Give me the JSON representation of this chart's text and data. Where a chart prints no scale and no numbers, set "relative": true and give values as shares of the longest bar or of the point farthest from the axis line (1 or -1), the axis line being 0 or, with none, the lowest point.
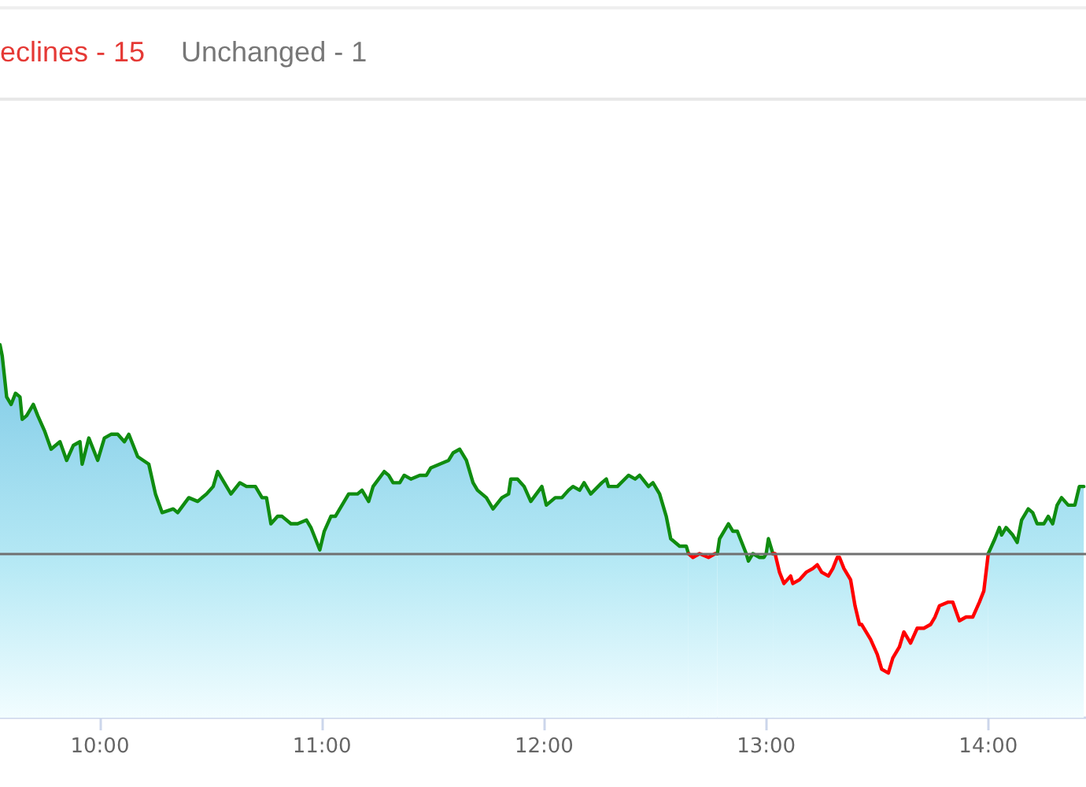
{
  "chart_data": {
    "type": "area",
    "relative": true,
    "annotations": [
      "eclines - 15",
      "Unchanged - 1"
    ],
    "xlim": [
      9.55,
      14.44
    ],
    "xticks": [
      {
        "value": 10,
        "label": "10:00"
      },
      {
        "value": 11,
        "label": "11:00"
      },
      {
        "value": 12,
        "label": "12:00"
      },
      {
        "value": 13,
        "label": "13:00"
      },
      {
        "value": 14,
        "label": "14:00"
      }
    ],
    "ref_lines": [
      {
        "axis": "y",
        "value": 0.44,
        "color": "#707070"
      }
    ],
    "marker": "none",
    "line_style": "solid",
    "series": [
      {
        "color": "#108c10",
        "x": [
          9.55,
          9.56,
          9.58,
          9.6,
          9.62,
          9.64,
          9.65,
          9.67,
          9.7,
          9.72,
          9.75,
          9.78,
          9.82,
          9.85,
          9.88,
          9.91,
          9.92,
          9.95,
          9.99,
          10.02,
          10.05,
          10.08,
          10.11,
          10.13,
          10.17,
          10.22,
          10.25,
          10.28,
          10.33,
          10.35,
          10.4,
          10.44,
          10.48,
          10.51,
          10.53,
          10.56,
          10.59,
          10.63,
          10.66,
          10.7,
          10.73,
          10.75,
          10.77,
          10.8,
          10.82,
          10.86,
          10.89,
          10.93,
          10.95,
          10.99,
          11.01,
          11.04,
          11.06,
          11.08,
          11.12,
          11.16,
          11.18,
          11.21,
          11.23,
          11.28,
          11.3,
          11.32,
          11.35,
          11.37,
          11.4,
          11.44,
          11.47,
          11.49,
          11.53,
          11.57,
          11.59,
          11.62,
          11.65,
          11.68,
          11.7,
          11.74,
          11.77,
          11.81,
          11.84,
          11.85,
          11.88,
          11.91,
          11.94,
          11.99,
          12.01,
          12.05,
          12.08,
          12.11,
          12.13,
          12.16,
          12.18,
          12.21,
          12.26,
          12.28,
          12.29,
          12.33,
          12.38,
          12.41,
          12.43,
          12.47,
          12.49,
          12.52,
          12.55,
          12.57,
          12.61,
          12.64,
          12.65
        ],
        "values": [
          1.0,
          0.97,
          0.86,
          0.84,
          0.87,
          0.86,
          0.8,
          0.81,
          0.84,
          0.81,
          0.77,
          0.72,
          0.74,
          0.69,
          0.73,
          0.74,
          0.68,
          0.75,
          0.69,
          0.75,
          0.76,
          0.76,
          0.74,
          0.76,
          0.7,
          0.68,
          0.6,
          0.55,
          0.56,
          0.55,
          0.59,
          0.58,
          0.6,
          0.62,
          0.66,
          0.63,
          0.6,
          0.63,
          0.62,
          0.62,
          0.59,
          0.59,
          0.52,
          0.54,
          0.54,
          0.52,
          0.52,
          0.53,
          0.51,
          0.45,
          0.5,
          0.54,
          0.54,
          0.56,
          0.6,
          0.6,
          0.61,
          0.58,
          0.62,
          0.66,
          0.65,
          0.63,
          0.63,
          0.65,
          0.64,
          0.65,
          0.65,
          0.67,
          0.68,
          0.69,
          0.71,
          0.72,
          0.69,
          0.63,
          0.61,
          0.59,
          0.56,
          0.59,
          0.6,
          0.64,
          0.64,
          0.62,
          0.58,
          0.62,
          0.57,
          0.59,
          0.59,
          0.61,
          0.62,
          0.61,
          0.63,
          0.6,
          0.63,
          0.64,
          0.62,
          0.62,
          0.65,
          0.64,
          0.65,
          0.62,
          0.63,
          0.6,
          0.54,
          0.48,
          0.46,
          0.46,
          0.44
        ]
      },
      {
        "color": "#ff0000",
        "x": [
          12.65,
          12.67,
          12.7,
          12.74,
          12.77,
          12.78
        ],
        "values": [
          0.44,
          0.43,
          0.44,
          0.43,
          0.44,
          0.44
        ]
      },
      {
        "color": "#108c10",
        "x": [
          12.78,
          12.79,
          12.83,
          12.85,
          12.87,
          12.91,
          12.92,
          12.94,
          12.97,
          12.99,
          13.0,
          13.01,
          13.03
        ],
        "values": [
          0.44,
          0.48,
          0.52,
          0.5,
          0.5,
          0.44,
          0.42,
          0.44,
          0.43,
          0.43,
          0.44,
          0.48,
          0.44
        ]
      },
      {
        "color": "#ff0000",
        "x": [
          13.03,
          13.04,
          13.06,
          13.08,
          13.11,
          13.12,
          13.15,
          13.18,
          13.21,
          13.23,
          13.25,
          13.28,
          13.3,
          13.32,
          13.33,
          13.35,
          13.38,
          13.4,
          13.42,
          13.43,
          13.47,
          13.5,
          13.52,
          13.55,
          13.57,
          13.6,
          13.62,
          13.65,
          13.68,
          13.71,
          13.74,
          13.76,
          13.78,
          13.82,
          13.84,
          13.87,
          13.9,
          13.93,
          13.96,
          13.98,
          14.0
        ],
        "values": [
          0.44,
          0.44,
          0.39,
          0.36,
          0.38,
          0.36,
          0.37,
          0.39,
          0.4,
          0.41,
          0.39,
          0.38,
          0.4,
          0.43,
          0.43,
          0.4,
          0.37,
          0.3,
          0.25,
          0.25,
          0.21,
          0.17,
          0.13,
          0.12,
          0.16,
          0.19,
          0.23,
          0.2,
          0.24,
          0.24,
          0.25,
          0.27,
          0.3,
          0.31,
          0.31,
          0.26,
          0.27,
          0.27,
          0.31,
          0.34,
          0.44
        ]
      },
      {
        "color": "#108c10",
        "x": [
          14.0,
          14.03,
          14.05,
          14.06,
          14.08,
          14.11,
          14.13,
          14.15,
          14.18,
          14.2,
          14.22,
          14.25,
          14.27,
          14.29,
          14.31,
          14.33,
          14.36,
          14.39,
          14.41,
          14.43
        ],
        "values": [
          0.44,
          0.48,
          0.51,
          0.49,
          0.51,
          0.49,
          0.47,
          0.53,
          0.56,
          0.55,
          0.52,
          0.52,
          0.54,
          0.52,
          0.57,
          0.59,
          0.57,
          0.57,
          0.62,
          0.62
        ]
      }
    ]
  }
}
